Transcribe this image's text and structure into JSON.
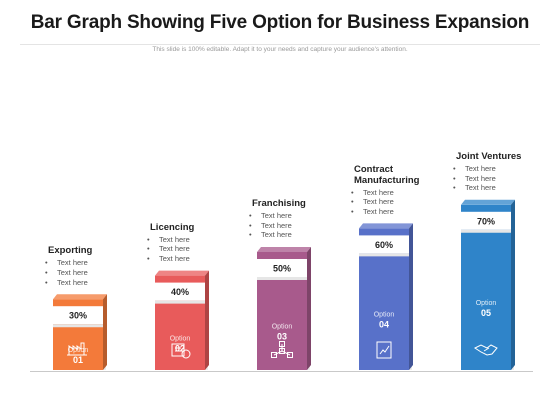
{
  "header": {
    "title": "Bar Graph Showing Five Option for Business Expansion",
    "subtitle": "This slide is 100% editable. Adapt it to your needs and capture your audience's attention."
  },
  "chart_data": {
    "type": "bar",
    "title": "Bar Graph Showing Five Option for Business Expansion",
    "categories": [
      "Option 01",
      "Option 02",
      "Option 03",
      "Option 04",
      "Option 05"
    ],
    "values": [
      30,
      40,
      50,
      60,
      70
    ],
    "value_labels": [
      "30%",
      "40%",
      "50%",
      "60%",
      "70%"
    ],
    "option_words": [
      "Option",
      "Option",
      "Option",
      "Option",
      "Option"
    ],
    "option_numbers": [
      "01",
      "02",
      "03",
      "04",
      "05"
    ],
    "colors": [
      "#f37a3a",
      "#e85b5b",
      "#a85a8c",
      "#5871c9",
      "#2f84c9"
    ],
    "icons": [
      "factory-icon",
      "money-building-icon",
      "network-icon",
      "document-chart-icon",
      "handshake-icon"
    ],
    "grid": false,
    "legend": "none"
  },
  "labels": [
    {
      "title": [
        "Exporting"
      ],
      "items": [
        "Text here",
        "Text here",
        "Text here"
      ]
    },
    {
      "title": [
        "Licencing"
      ],
      "items": [
        "Text here",
        "Text here",
        "Text here"
      ]
    },
    {
      "title": [
        "Franchising"
      ],
      "items": [
        "Text here",
        "Text here",
        "Text here"
      ]
    },
    {
      "title": [
        "Contract",
        "Manufacturing"
      ],
      "items": [
        "Text here",
        "Text here",
        "Text here"
      ]
    },
    {
      "title": [
        "Joint Ventures"
      ],
      "items": [
        "Text here",
        "Text here",
        "Text here"
      ]
    }
  ]
}
